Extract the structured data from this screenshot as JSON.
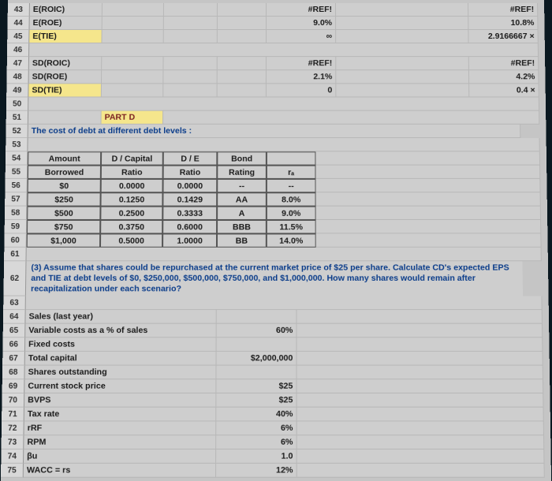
{
  "rows": {
    "r43": {
      "b": "E(ROIC)",
      "f": "#REF!",
      "h": "#REF!"
    },
    "r44": {
      "b": "E(ROE)",
      "f": "9.0%",
      "h": "10.8%"
    },
    "r45": {
      "b": "E(TIE)",
      "f": "∞",
      "h": "2.9166667 ×"
    },
    "r47": {
      "b": "SD(ROIC)",
      "f": "#REF!",
      "h": "#REF!"
    },
    "r48": {
      "b": "SD(ROE)",
      "f": "2.1%",
      "h": "4.2%"
    },
    "r49": {
      "b": "SD(TIE)",
      "f": "0",
      "h": "0.4 ×"
    },
    "r51": {
      "c": "PART D"
    },
    "r52": {
      "b": "The cost of debt at different debt levels :"
    }
  },
  "tableHeader": {
    "b": "Amount",
    "c": "D / Capital",
    "d": "D / E",
    "e": "Bond",
    "f": ""
  },
  "tableHeader2": {
    "b": "Borrowed",
    "c": "Ratio",
    "d": "Ratio",
    "e": "Rating",
    "f": "rₐ"
  },
  "tableRows": [
    {
      "b": "$0",
      "c": "0.0000",
      "d": "0.0000",
      "e": "--",
      "f": "--"
    },
    {
      "b": "$250",
      "c": "0.1250",
      "d": "0.1429",
      "e": "AA",
      "f": "8.0%"
    },
    {
      "b": "$500",
      "c": "0.2500",
      "d": "0.3333",
      "e": "A",
      "f": "9.0%"
    },
    {
      "b": "$750",
      "c": "0.3750",
      "d": "0.6000",
      "e": "BBB",
      "f": "11.5%"
    },
    {
      "b": "$1,000",
      "c": "0.5000",
      "d": "1.0000",
      "e": "BB",
      "f": "14.0%"
    }
  ],
  "question": "(3)  Assume that shares could be repurchased at the current market price of $25 per share. Calculate CD's expected EPS and TIE at debt levels of $0, $250,000, $500,000, $750,000, and $1,000,000. How many shares would remain after recapitalization under each scenario?",
  "assumptions": [
    {
      "num": "64",
      "label": "Sales (last year)",
      "val": ""
    },
    {
      "num": "65",
      "label": "Variable costs as a % of sales",
      "val": "60%"
    },
    {
      "num": "66",
      "label": "Fixed costs",
      "val": ""
    },
    {
      "num": "67",
      "label": "Total capital",
      "val": "$2,000,000"
    },
    {
      "num": "68",
      "label": "Shares outstanding",
      "val": ""
    },
    {
      "num": "69",
      "label": "Current stock price",
      "val": "$25"
    },
    {
      "num": "70",
      "label": "BVPS",
      "val": "$25"
    },
    {
      "num": "71",
      "label": "Tax rate",
      "val": "40%"
    },
    {
      "num": "72",
      "label": "rRF",
      "val": "6%"
    },
    {
      "num": "73",
      "label": "RPM",
      "val": "6%"
    },
    {
      "num": "74",
      "label": "βu",
      "val": "1.0"
    },
    {
      "num": "75",
      "label": "WACC = rs",
      "val": "12%"
    }
  ],
  "colors": {
    "yellow": "#f5e68c",
    "blue": "#0a3c8a",
    "darkred": "#7a2020",
    "cellbg": "#cecece"
  }
}
